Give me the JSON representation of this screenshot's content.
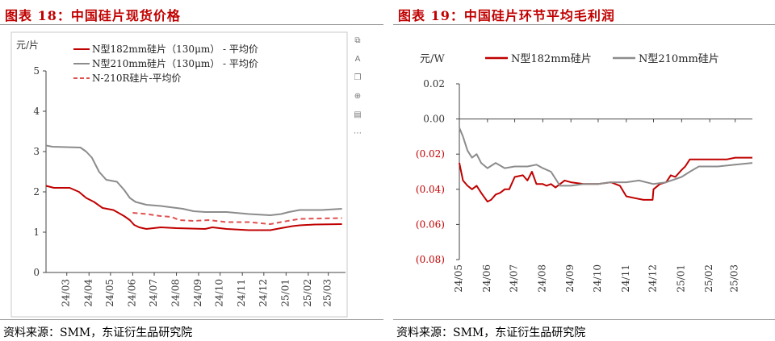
{
  "source": "资料来源：SMM，东证衍生品研究院",
  "charts": [
    {
      "title": "图表 18：中国硅片现货价格",
      "chart_data": {
        "type": "line",
        "ylabel": "元/片",
        "ylim": [
          0,
          5
        ],
        "yticks": [
          "0",
          "1",
          "2",
          "3",
          "4",
          "5"
        ],
        "xlim": [
          "2024-02-01",
          "2025-03-25"
        ],
        "xticks": [
          {
            "date": "2024-03-01",
            "label": "24/03"
          },
          {
            "date": "2024-04-01",
            "label": "24/04"
          },
          {
            "date": "2024-05-01",
            "label": "24/05"
          },
          {
            "date": "2024-06-01",
            "label": "24/06"
          },
          {
            "date": "2024-07-01",
            "label": "24/07"
          },
          {
            "date": "2024-08-01",
            "label": "24/08"
          },
          {
            "date": "2024-09-01",
            "label": "24/09"
          },
          {
            "date": "2024-10-01",
            "label": "24/10"
          },
          {
            "date": "2024-11-01",
            "label": "24/11"
          },
          {
            "date": "2024-12-01",
            "label": "24/12"
          },
          {
            "date": "2025-01-01",
            "label": "25/01"
          },
          {
            "date": "2025-02-01",
            "label": "25/02"
          },
          {
            "date": "2025-03-01",
            "label": "25/03"
          }
        ],
        "grid": false,
        "legend": "top-left",
        "series": [
          {
            "name": "N型182mm硅片（130μm） - 平均价",
            "color": "#c00000",
            "dash": "solid",
            "points": [
              [
                "2024-02-01",
                2.15
              ],
              [
                "2024-02-12",
                2.1
              ],
              [
                "2024-03-05",
                2.1
              ],
              [
                "2024-03-18",
                2.0
              ],
              [
                "2024-03-28",
                1.85
              ],
              [
                "2024-04-08",
                1.75
              ],
              [
                "2024-04-20",
                1.6
              ],
              [
                "2024-05-05",
                1.55
              ],
              [
                "2024-05-10",
                1.5
              ],
              [
                "2024-05-20",
                1.4
              ],
              [
                "2024-05-28",
                1.3
              ],
              [
                "2024-06-03",
                1.18
              ],
              [
                "2024-06-10",
                1.12
              ],
              [
                "2024-06-20",
                1.08
              ],
              [
                "2024-07-10",
                1.12
              ],
              [
                "2024-08-01",
                1.1
              ],
              [
                "2024-09-10",
                1.08
              ],
              [
                "2024-09-20",
                1.12
              ],
              [
                "2024-10-10",
                1.08
              ],
              [
                "2024-11-10",
                1.05
              ],
              [
                "2024-12-10",
                1.05
              ],
              [
                "2024-12-25",
                1.1
              ],
              [
                "2025-01-10",
                1.15
              ],
              [
                "2025-01-20",
                1.17
              ],
              [
                "2025-02-10",
                1.19
              ],
              [
                "2025-03-20",
                1.2
              ]
            ]
          },
          {
            "name": "N型210mm硅片（130μm） - 平均价",
            "color": "#8c8c8c",
            "dash": "solid",
            "points": [
              [
                "2024-02-01",
                3.15
              ],
              [
                "2024-02-10",
                3.12
              ],
              [
                "2024-03-20",
                3.1
              ],
              [
                "2024-03-28",
                3.0
              ],
              [
                "2024-04-05",
                2.85
              ],
              [
                "2024-04-15",
                2.5
              ],
              [
                "2024-04-25",
                2.3
              ],
              [
                "2024-05-10",
                2.25
              ],
              [
                "2024-05-20",
                2.05
              ],
              [
                "2024-05-28",
                1.85
              ],
              [
                "2024-06-05",
                1.75
              ],
              [
                "2024-06-20",
                1.68
              ],
              [
                "2024-07-10",
                1.65
              ],
              [
                "2024-08-10",
                1.58
              ],
              [
                "2024-08-25",
                1.52
              ],
              [
                "2024-09-10",
                1.5
              ],
              [
                "2024-10-10",
                1.5
              ],
              [
                "2024-11-10",
                1.45
              ],
              [
                "2024-12-10",
                1.42
              ],
              [
                "2024-12-25",
                1.45
              ],
              [
                "2025-01-05",
                1.5
              ],
              [
                "2025-01-20",
                1.55
              ],
              [
                "2025-02-20",
                1.55
              ],
              [
                "2025-03-20",
                1.58
              ]
            ]
          },
          {
            "name": "N-210R硅片-平均价",
            "color": "#e05050",
            "dash": "dashed",
            "points": [
              [
                "2024-06-01",
                1.48
              ],
              [
                "2024-06-20",
                1.45
              ],
              [
                "2024-07-10",
                1.4
              ],
              [
                "2024-07-25",
                1.38
              ],
              [
                "2024-08-05",
                1.3
              ],
              [
                "2024-08-25",
                1.28
              ],
              [
                "2024-09-15",
                1.3
              ],
              [
                "2024-10-10",
                1.25
              ],
              [
                "2024-11-10",
                1.25
              ],
              [
                "2024-12-10",
                1.2
              ],
              [
                "2024-12-25",
                1.25
              ],
              [
                "2025-01-10",
                1.3
              ],
              [
                "2025-01-20",
                1.33
              ],
              [
                "2025-03-20",
                1.35
              ]
            ]
          }
        ]
      }
    },
    {
      "title": "图表 19：中国硅片环节平均毛利润",
      "chart_data": {
        "type": "line",
        "ylabel": "元/W",
        "ylim": [
          -0.08,
          0.02
        ],
        "yticks": [
          {
            "value": 0.02,
            "label": "0.02",
            "color": "#333333"
          },
          {
            "value": 0.0,
            "label": "0.00",
            "color": "#333333"
          },
          {
            "value": -0.02,
            "label": "(0.02)",
            "color": "#c00000"
          },
          {
            "value": -0.04,
            "label": "(0.04)",
            "color": "#c00000"
          },
          {
            "value": -0.06,
            "label": "(0.06)",
            "color": "#c00000"
          },
          {
            "value": -0.08,
            "label": "(0.08)",
            "color": "#c00000"
          }
        ],
        "xlim": [
          "2024-05-01",
          "2025-03-20"
        ],
        "xticks": [
          {
            "date": "2024-05-01",
            "label": "24/05"
          },
          {
            "date": "2024-06-01",
            "label": "24/06"
          },
          {
            "date": "2024-07-01",
            "label": "24/07"
          },
          {
            "date": "2024-08-01",
            "label": "24/08"
          },
          {
            "date": "2024-09-01",
            "label": "24/09"
          },
          {
            "date": "2024-10-01",
            "label": "24/10"
          },
          {
            "date": "2024-11-01",
            "label": "24/11"
          },
          {
            "date": "2024-12-01",
            "label": "24/12"
          },
          {
            "date": "2025-01-01",
            "label": "25/01"
          },
          {
            "date": "2025-02-01",
            "label": "25/02"
          },
          {
            "date": "2025-03-01",
            "label": "25/03"
          }
        ],
        "grid": false,
        "legend": "top",
        "series": [
          {
            "name": "N型182mm硅片",
            "color": "#c00000",
            "dash": "solid",
            "points": [
              [
                "2024-05-01",
                -0.025
              ],
              [
                "2024-05-05",
                -0.035
              ],
              [
                "2024-05-10",
                -0.038
              ],
              [
                "2024-05-15",
                -0.04
              ],
              [
                "2024-05-20",
                -0.038
              ],
              [
                "2024-05-25",
                -0.042
              ],
              [
                "2024-06-01",
                -0.047
              ],
              [
                "2024-06-05",
                -0.046
              ],
              [
                "2024-06-10",
                -0.043
              ],
              [
                "2024-06-15",
                -0.042
              ],
              [
                "2024-06-20",
                -0.04
              ],
              [
                "2024-06-25",
                -0.04
              ],
              [
                "2024-07-01",
                -0.033
              ],
              [
                "2024-07-10",
                -0.032
              ],
              [
                "2024-07-15",
                -0.035
              ],
              [
                "2024-07-20",
                -0.03
              ],
              [
                "2024-07-25",
                -0.037
              ],
              [
                "2024-08-01",
                -0.037
              ],
              [
                "2024-08-05",
                -0.038
              ],
              [
                "2024-08-10",
                -0.037
              ],
              [
                "2024-08-15",
                -0.039
              ],
              [
                "2024-08-20",
                -0.037
              ],
              [
                "2024-08-25",
                -0.035
              ],
              [
                "2024-09-01",
                -0.036
              ],
              [
                "2024-09-15",
                -0.037
              ],
              [
                "2024-10-01",
                -0.037
              ],
              [
                "2024-10-15",
                -0.036
              ],
              [
                "2024-10-25",
                -0.038
              ],
              [
                "2024-11-01",
                -0.044
              ],
              [
                "2024-11-10",
                -0.045
              ],
              [
                "2024-11-20",
                -0.046
              ],
              [
                "2024-11-30",
                -0.046
              ],
              [
                "2024-12-01",
                -0.04
              ],
              [
                "2024-12-08",
                -0.037
              ],
              [
                "2024-12-15",
                -0.036
              ],
              [
                "2024-12-20",
                -0.032
              ],
              [
                "2024-12-25",
                -0.033
              ],
              [
                "2025-01-01",
                -0.029
              ],
              [
                "2025-01-05",
                -0.027
              ],
              [
                "2025-01-10",
                -0.023
              ],
              [
                "2025-02-01",
                -0.023
              ],
              [
                "2025-02-20",
                -0.023
              ],
              [
                "2025-03-01",
                -0.022
              ],
              [
                "2025-03-20",
                -0.022
              ]
            ]
          },
          {
            "name": "N型210mm硅片",
            "color": "#8c8c8c",
            "dash": "solid",
            "points": [
              [
                "2024-05-01",
                -0.005
              ],
              [
                "2024-05-05",
                -0.01
              ],
              [
                "2024-05-10",
                -0.018
              ],
              [
                "2024-05-15",
                -0.022
              ],
              [
                "2024-05-20",
                -0.02
              ],
              [
                "2024-05-25",
                -0.025
              ],
              [
                "2024-06-01",
                -0.028
              ],
              [
                "2024-06-10",
                -0.025
              ],
              [
                "2024-06-20",
                -0.028
              ],
              [
                "2024-07-01",
                -0.027
              ],
              [
                "2024-07-15",
                -0.027
              ],
              [
                "2024-07-25",
                -0.026
              ],
              [
                "2024-08-01",
                -0.028
              ],
              [
                "2024-08-10",
                -0.03
              ],
              [
                "2024-08-20",
                -0.038
              ],
              [
                "2024-09-01",
                -0.038
              ],
              [
                "2024-09-15",
                -0.037
              ],
              [
                "2024-10-01",
                -0.037
              ],
              [
                "2024-10-15",
                -0.036
              ],
              [
                "2024-11-01",
                -0.036
              ],
              [
                "2024-11-15",
                -0.035
              ],
              [
                "2024-12-01",
                -0.037
              ],
              [
                "2024-12-15",
                -0.036
              ],
              [
                "2025-01-01",
                -0.033
              ],
              [
                "2025-01-10",
                -0.03
              ],
              [
                "2025-01-20",
                -0.027
              ],
              [
                "2025-02-10",
                -0.027
              ],
              [
                "2025-03-01",
                -0.026
              ],
              [
                "2025-03-20",
                -0.025
              ]
            ]
          }
        ]
      }
    }
  ],
  "toolbar": [
    {
      "icon": "copy-image-icon",
      "glyph": "⧉"
    },
    {
      "icon": "text-select-icon",
      "glyph": "A"
    },
    {
      "icon": "duplicate-icon",
      "glyph": "❐"
    },
    {
      "icon": "zoom-icon",
      "glyph": "⊕"
    },
    {
      "icon": "export-icon",
      "glyph": "▤"
    },
    {
      "icon": "more-icon",
      "glyph": "⋯"
    }
  ]
}
